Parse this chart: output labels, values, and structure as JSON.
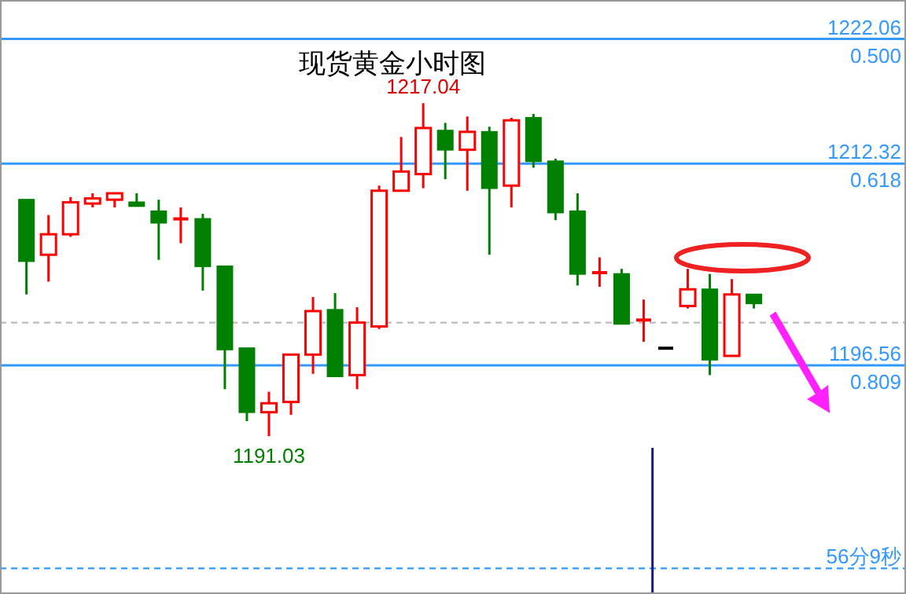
{
  "chart_data": {
    "type": "candlestick",
    "title": "现货黄金小时图",
    "categories": [
      null,
      null,
      null,
      null,
      null,
      null,
      null,
      null,
      null,
      null,
      null,
      null,
      null,
      null,
      null,
      null,
      null,
      null,
      null,
      null,
      null,
      null,
      null,
      null,
      null,
      null,
      null,
      null,
      null,
      null,
      null,
      null,
      null,
      null
    ],
    "ohlc": [
      [
        1209.5,
        1209.5,
        1202.1,
        1204.7
      ],
      [
        1205.2,
        1208.3,
        1203.1,
        1206.8
      ],
      [
        1206.8,
        1209.7,
        1206.6,
        1209.3
      ],
      [
        1209.2,
        1210.0,
        1208.9,
        1209.6
      ],
      [
        1209.5,
        1210.0,
        1208.9,
        1210.0
      ],
      [
        1209.3,
        1210.0,
        1209.0,
        1209.0
      ],
      [
        1208.6,
        1209.5,
        1204.8,
        1207.7
      ],
      [
        1207.9,
        1208.9,
        1206.1,
        1208.0
      ],
      [
        1208.0,
        1208.4,
        1202.4,
        1204.3
      ],
      [
        1204.3,
        1204.3,
        1194.7,
        1197.8
      ],
      [
        1197.9,
        1197.9,
        1192.2,
        1192.9
      ],
      [
        1192.9,
        1194.5,
        1191.03,
        1193.6
      ],
      [
        1193.7,
        1197.4,
        1192.7,
        1197.4
      ],
      [
        1197.4,
        1201.9,
        1195.9,
        1200.8
      ],
      [
        1200.9,
        1202.2,
        1195.7,
        1195.7
      ],
      [
        1195.8,
        1201.1,
        1194.7,
        1199.9
      ],
      [
        1199.6,
        1210.6,
        1199.4,
        1210.2
      ],
      [
        1210.2,
        1214.4,
        1210.2,
        1211.7
      ],
      [
        1211.5,
        1217.04,
        1210.4,
        1215.1
      ],
      [
        1214.9,
        1215.5,
        1211.1,
        1213.4
      ],
      [
        1213.4,
        1216.0,
        1210.2,
        1214.8
      ],
      [
        1214.8,
        1215.2,
        1205.2,
        1210.4
      ],
      [
        1210.6,
        1215.9,
        1208.9,
        1215.7
      ],
      [
        1215.9,
        1216.2,
        1212.0,
        1212.5
      ],
      [
        1212.5,
        1212.7,
        1207.9,
        1208.5
      ],
      [
        1208.6,
        1210.0,
        1202.8,
        1203.7
      ],
      [
        1203.7,
        1205.0,
        1202.7,
        1203.8
      ],
      [
        1203.7,
        1204.1,
        1199.8,
        1199.8
      ],
      [
        1200.0,
        1201.7,
        1198.4,
        1200.1
      ],
      [
        1197.9,
        1197.9,
        1197.9,
        1197.9
      ],
      [
        1201.2,
        1204.1,
        1201.0,
        1202.5
      ],
      [
        1202.5,
        1203.7,
        1195.8,
        1197.0
      ],
      [
        1197.3,
        1203.3,
        1197.3,
        1202.1
      ],
      [
        1202.1,
        1202.1,
        1201.0,
        1201.4
      ]
    ],
    "colors": [
      "#008000",
      "#ff0000",
      "#ff0000",
      "#ff0000",
      "#ff0000",
      "#008000",
      "#008000",
      "#ff0000",
      "#008000",
      "#008000",
      "#008000",
      "#ff0000",
      "#ff0000",
      "#ff0000",
      "#008000",
      "#ff0000",
      "#ff0000",
      "#ff0000",
      "#ff0000",
      "#008000",
      "#ff0000",
      "#008000",
      "#ff0000",
      "#008000",
      "#008000",
      "#008000",
      "#ff0000",
      "#008000",
      "#ff0000",
      "#000000",
      "#ff0000",
      "#008000",
      "#ff0000",
      "#008000"
    ],
    "ylim": [
      1178.7,
      1225.1
    ],
    "ref_lines": [
      {
        "axis": "y",
        "value": 1222.06,
        "label": "1222.06\n0.500",
        "color": "#3399ff",
        "line_style": "solid"
      },
      {
        "axis": "y",
        "value": 1212.32,
        "label": "1212.32\n0.618",
        "color": "#3399ff",
        "line_style": "solid"
      },
      {
        "axis": "y",
        "value": 1196.56,
        "label": "1196.56\n0.809",
        "color": "#3399ff",
        "line_style": "solid"
      },
      {
        "axis": "y",
        "value": 1199.9,
        "color": "#bbbbbb",
        "line_style": "dashed"
      },
      {
        "axis": "y",
        "value": 1180.7,
        "label": "56分9秒",
        "color": "#3399ff",
        "line_style": "dashed"
      }
    ],
    "annotations": [
      {
        "text": "1217.04",
        "y": 1217.04
      },
      {
        "text": "1191.03",
        "y": 1191.03
      }
    ]
  }
}
